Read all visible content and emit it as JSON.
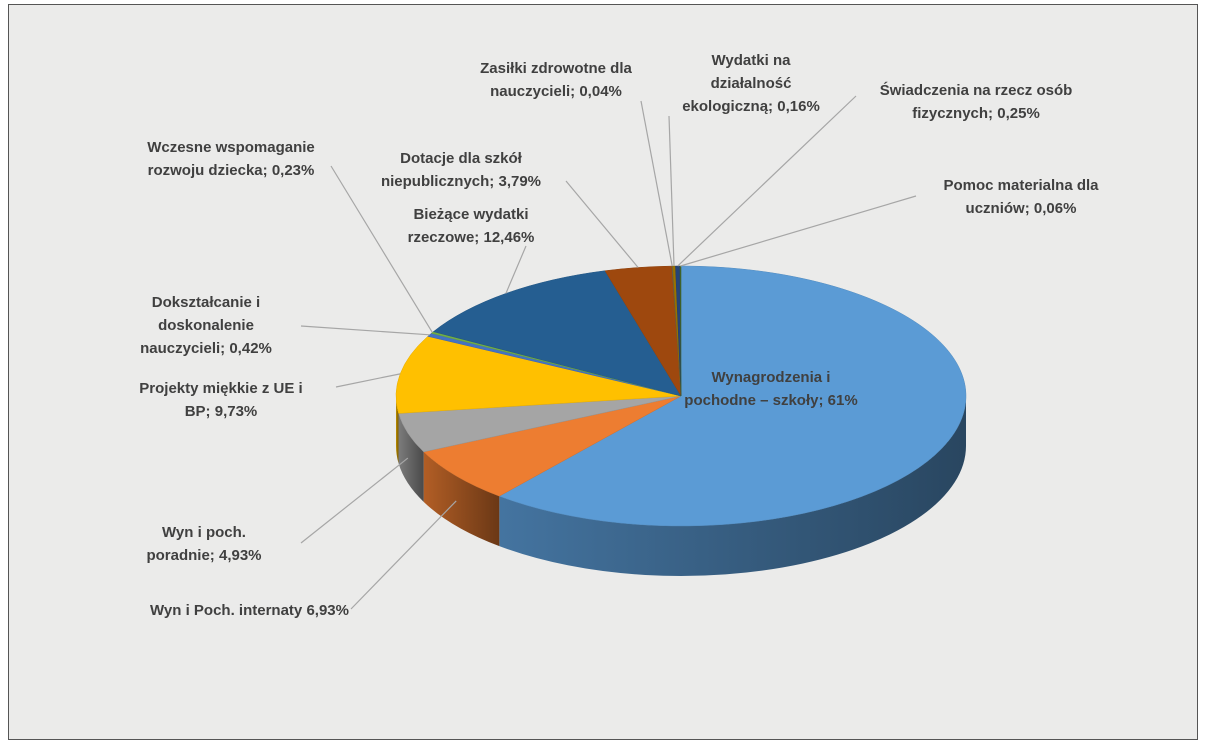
{
  "chart_data": {
    "type": "pie",
    "categories": [
      "Wynagrodzenia i pochodne – szkoły;",
      "Wyn i Poch. internaty",
      "Wyn i poch. poradnie;",
      "Projekty miękkie z UE i BP;",
      "Dokształcanie i doskonalenie nauczycieli;",
      "Wczesne wspomaganie rozwoju dziecka;",
      "Bieżące wydatki rzeczowe;",
      "Dotacje dla szkół niepublicznych;",
      "Zasiłki zdrowotne dla nauczycieli;",
      "Wydatki na działalność ekologiczną;",
      "Świadczenia na rzecz osób fizycznych;",
      "Pomoc materialna dla uczniów;"
    ],
    "values": [
      61,
      6.93,
      4.93,
      9.73,
      0.42,
      0.23,
      12.46,
      3.79,
      0.04,
      0.16,
      0.25,
      0.06
    ],
    "value_labels": [
      "61%",
      "6,93%",
      "4,93%",
      "9,73%",
      "0,42%",
      "0,23%",
      "12,46%",
      "3,79%",
      "0,04%",
      "0,16%",
      "0,25%",
      "0,06%"
    ],
    "colors": [
      "#5b9bd5",
      "#ed7d31",
      "#a5a5a5",
      "#ffc000",
      "#4472c4",
      "#70ad47",
      "#255e91",
      "#9e480e",
      "#636363",
      "#997300",
      "#264478",
      "#43682b"
    ]
  }
}
